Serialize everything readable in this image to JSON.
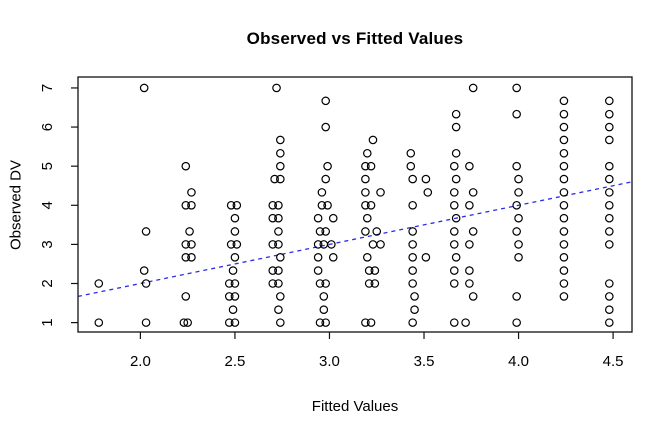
{
  "window": {
    "title": "Observed vs Fitted Values"
  },
  "chart_data": {
    "type": "scatter",
    "title": "Observed vs Fitted Values",
    "xlabel": "Fitted Values",
    "ylabel": "Observed DV",
    "x_ticks": [
      2.0,
      2.5,
      3.0,
      3.5,
      4.0,
      4.5
    ],
    "x_tick_labels": [
      "2.0",
      "2.5",
      "3.0",
      "3.5",
      "4.0",
      "4.5"
    ],
    "y_ticks": [
      1,
      2,
      3,
      4,
      5,
      6,
      7
    ],
    "y_tick_labels": [
      "1",
      "2",
      "3",
      "4",
      "5",
      "6",
      "7"
    ],
    "xlim": [
      1.67,
      4.6
    ],
    "ylim": [
      0.76,
      7.28
    ],
    "grid": false,
    "axis_color": "#111111",
    "point_style": {
      "shape": "open-circle",
      "color": "#000000"
    },
    "trend_line": {
      "type": "identity",
      "slope": 1,
      "intercept": 0,
      "style": "dashed",
      "color": "#2b2bea"
    },
    "points": [
      [
        1.78,
        2
      ],
      [
        1.78,
        1
      ],
      [
        2.02,
        7
      ],
      [
        2.03,
        3.33
      ],
      [
        2.02,
        2.33
      ],
      [
        2.03,
        2
      ],
      [
        2.03,
        1
      ],
      [
        2.24,
        5
      ],
      [
        2.27,
        4.33
      ],
      [
        2.24,
        4
      ],
      [
        2.27,
        4
      ],
      [
        2.26,
        3.33
      ],
      [
        2.24,
        3
      ],
      [
        2.27,
        3
      ],
      [
        2.24,
        2.67
      ],
      [
        2.27,
        2.67
      ],
      [
        2.24,
        1.67
      ],
      [
        2.23,
        1
      ],
      [
        2.25,
        1
      ],
      [
        2.48,
        4
      ],
      [
        2.51,
        4
      ],
      [
        2.5,
        3.67
      ],
      [
        2.5,
        3.33
      ],
      [
        2.48,
        3
      ],
      [
        2.51,
        3
      ],
      [
        2.5,
        2.67
      ],
      [
        2.49,
        2.33
      ],
      [
        2.47,
        2
      ],
      [
        2.5,
        2
      ],
      [
        2.47,
        1.67
      ],
      [
        2.5,
        1.67
      ],
      [
        2.49,
        1.33
      ],
      [
        2.47,
        1
      ],
      [
        2.5,
        1
      ],
      [
        2.72,
        7
      ],
      [
        2.74,
        5.67
      ],
      [
        2.74,
        5.33
      ],
      [
        2.74,
        5
      ],
      [
        2.71,
        4.67
      ],
      [
        2.74,
        4.67
      ],
      [
        2.7,
        4
      ],
      [
        2.73,
        4
      ],
      [
        2.7,
        3.67
      ],
      [
        2.73,
        3.67
      ],
      [
        2.73,
        3.33
      ],
      [
        2.7,
        3
      ],
      [
        2.73,
        3
      ],
      [
        2.74,
        2.67
      ],
      [
        2.7,
        2.33
      ],
      [
        2.73,
        2.33
      ],
      [
        2.7,
        2
      ],
      [
        2.73,
        2
      ],
      [
        2.74,
        1.67
      ],
      [
        2.73,
        1.33
      ],
      [
        2.74,
        1
      ],
      [
        2.98,
        6.67
      ],
      [
        2.98,
        6
      ],
      [
        2.99,
        5
      ],
      [
        2.98,
        4.67
      ],
      [
        2.96,
        4.33
      ],
      [
        2.96,
        4
      ],
      [
        2.99,
        4
      ],
      [
        2.94,
        3.67
      ],
      [
        3.02,
        3.67
      ],
      [
        2.95,
        3.33
      ],
      [
        2.98,
        3.33
      ],
      [
        2.94,
        3
      ],
      [
        2.97,
        3
      ],
      [
        3.01,
        3
      ],
      [
        2.94,
        2.67
      ],
      [
        3.02,
        2.67
      ],
      [
        2.94,
        2.33
      ],
      [
        2.95,
        2
      ],
      [
        2.98,
        2
      ],
      [
        2.97,
        1.67
      ],
      [
        2.97,
        1.33
      ],
      [
        2.95,
        1
      ],
      [
        2.98,
        1
      ],
      [
        3.23,
        5.67
      ],
      [
        3.2,
        5.33
      ],
      [
        3.19,
        5
      ],
      [
        3.22,
        5
      ],
      [
        3.19,
        4.67
      ],
      [
        3.19,
        4.33
      ],
      [
        3.27,
        4.33
      ],
      [
        3.19,
        4
      ],
      [
        3.22,
        4
      ],
      [
        3.2,
        3.67
      ],
      [
        3.19,
        3.33
      ],
      [
        3.25,
        3.33
      ],
      [
        3.23,
        3
      ],
      [
        3.27,
        3
      ],
      [
        3.2,
        2.67
      ],
      [
        3.21,
        2.33
      ],
      [
        3.24,
        2.33
      ],
      [
        3.21,
        2
      ],
      [
        3.24,
        2
      ],
      [
        3.19,
        1
      ],
      [
        3.22,
        1
      ],
      [
        3.43,
        5.33
      ],
      [
        3.43,
        5
      ],
      [
        3.44,
        4.67
      ],
      [
        3.51,
        4.67
      ],
      [
        3.52,
        4.33
      ],
      [
        3.44,
        4
      ],
      [
        3.44,
        3.33
      ],
      [
        3.44,
        3
      ],
      [
        3.44,
        2.67
      ],
      [
        3.51,
        2.67
      ],
      [
        3.44,
        2.33
      ],
      [
        3.44,
        2
      ],
      [
        3.45,
        1.67
      ],
      [
        3.45,
        1.33
      ],
      [
        3.44,
        1
      ],
      [
        3.76,
        7
      ],
      [
        3.67,
        6.33
      ],
      [
        3.67,
        6
      ],
      [
        3.67,
        5.33
      ],
      [
        3.66,
        5
      ],
      [
        3.74,
        5
      ],
      [
        3.67,
        4.67
      ],
      [
        3.66,
        4.33
      ],
      [
        3.76,
        4.33
      ],
      [
        3.66,
        4
      ],
      [
        3.74,
        4
      ],
      [
        3.67,
        3.67
      ],
      [
        3.66,
        3.33
      ],
      [
        3.76,
        3.33
      ],
      [
        3.66,
        3
      ],
      [
        3.74,
        3
      ],
      [
        3.67,
        2.67
      ],
      [
        3.66,
        2.33
      ],
      [
        3.74,
        2.33
      ],
      [
        3.66,
        2
      ],
      [
        3.74,
        2
      ],
      [
        3.76,
        1.67
      ],
      [
        3.66,
        1
      ],
      [
        3.72,
        1
      ],
      [
        3.99,
        7
      ],
      [
        3.99,
        6.33
      ],
      [
        3.99,
        5
      ],
      [
        4.0,
        4.67
      ],
      [
        4.0,
        4.33
      ],
      [
        3.99,
        4
      ],
      [
        4.0,
        3.67
      ],
      [
        3.99,
        3.33
      ],
      [
        4.0,
        3
      ],
      [
        4.0,
        2.67
      ],
      [
        3.99,
        1.67
      ],
      [
        3.99,
        1
      ],
      [
        4.24,
        6.67
      ],
      [
        4.24,
        6.33
      ],
      [
        4.24,
        6
      ],
      [
        4.24,
        5.67
      ],
      [
        4.24,
        5.33
      ],
      [
        4.24,
        5
      ],
      [
        4.24,
        4.67
      ],
      [
        4.24,
        4.33
      ],
      [
        4.24,
        4
      ],
      [
        4.24,
        3.67
      ],
      [
        4.24,
        3.33
      ],
      [
        4.24,
        3
      ],
      [
        4.24,
        2.67
      ],
      [
        4.24,
        2.33
      ],
      [
        4.24,
        2
      ],
      [
        4.24,
        1.67
      ],
      [
        4.48,
        6.67
      ],
      [
        4.48,
        6.33
      ],
      [
        4.48,
        6
      ],
      [
        4.48,
        5.67
      ],
      [
        4.48,
        5
      ],
      [
        4.48,
        4.67
      ],
      [
        4.48,
        4.33
      ],
      [
        4.48,
        4
      ],
      [
        4.48,
        3.67
      ],
      [
        4.48,
        3.33
      ],
      [
        4.48,
        3
      ],
      [
        4.48,
        2
      ],
      [
        4.48,
        1.67
      ],
      [
        4.48,
        1.33
      ],
      [
        4.48,
        1
      ]
    ]
  }
}
